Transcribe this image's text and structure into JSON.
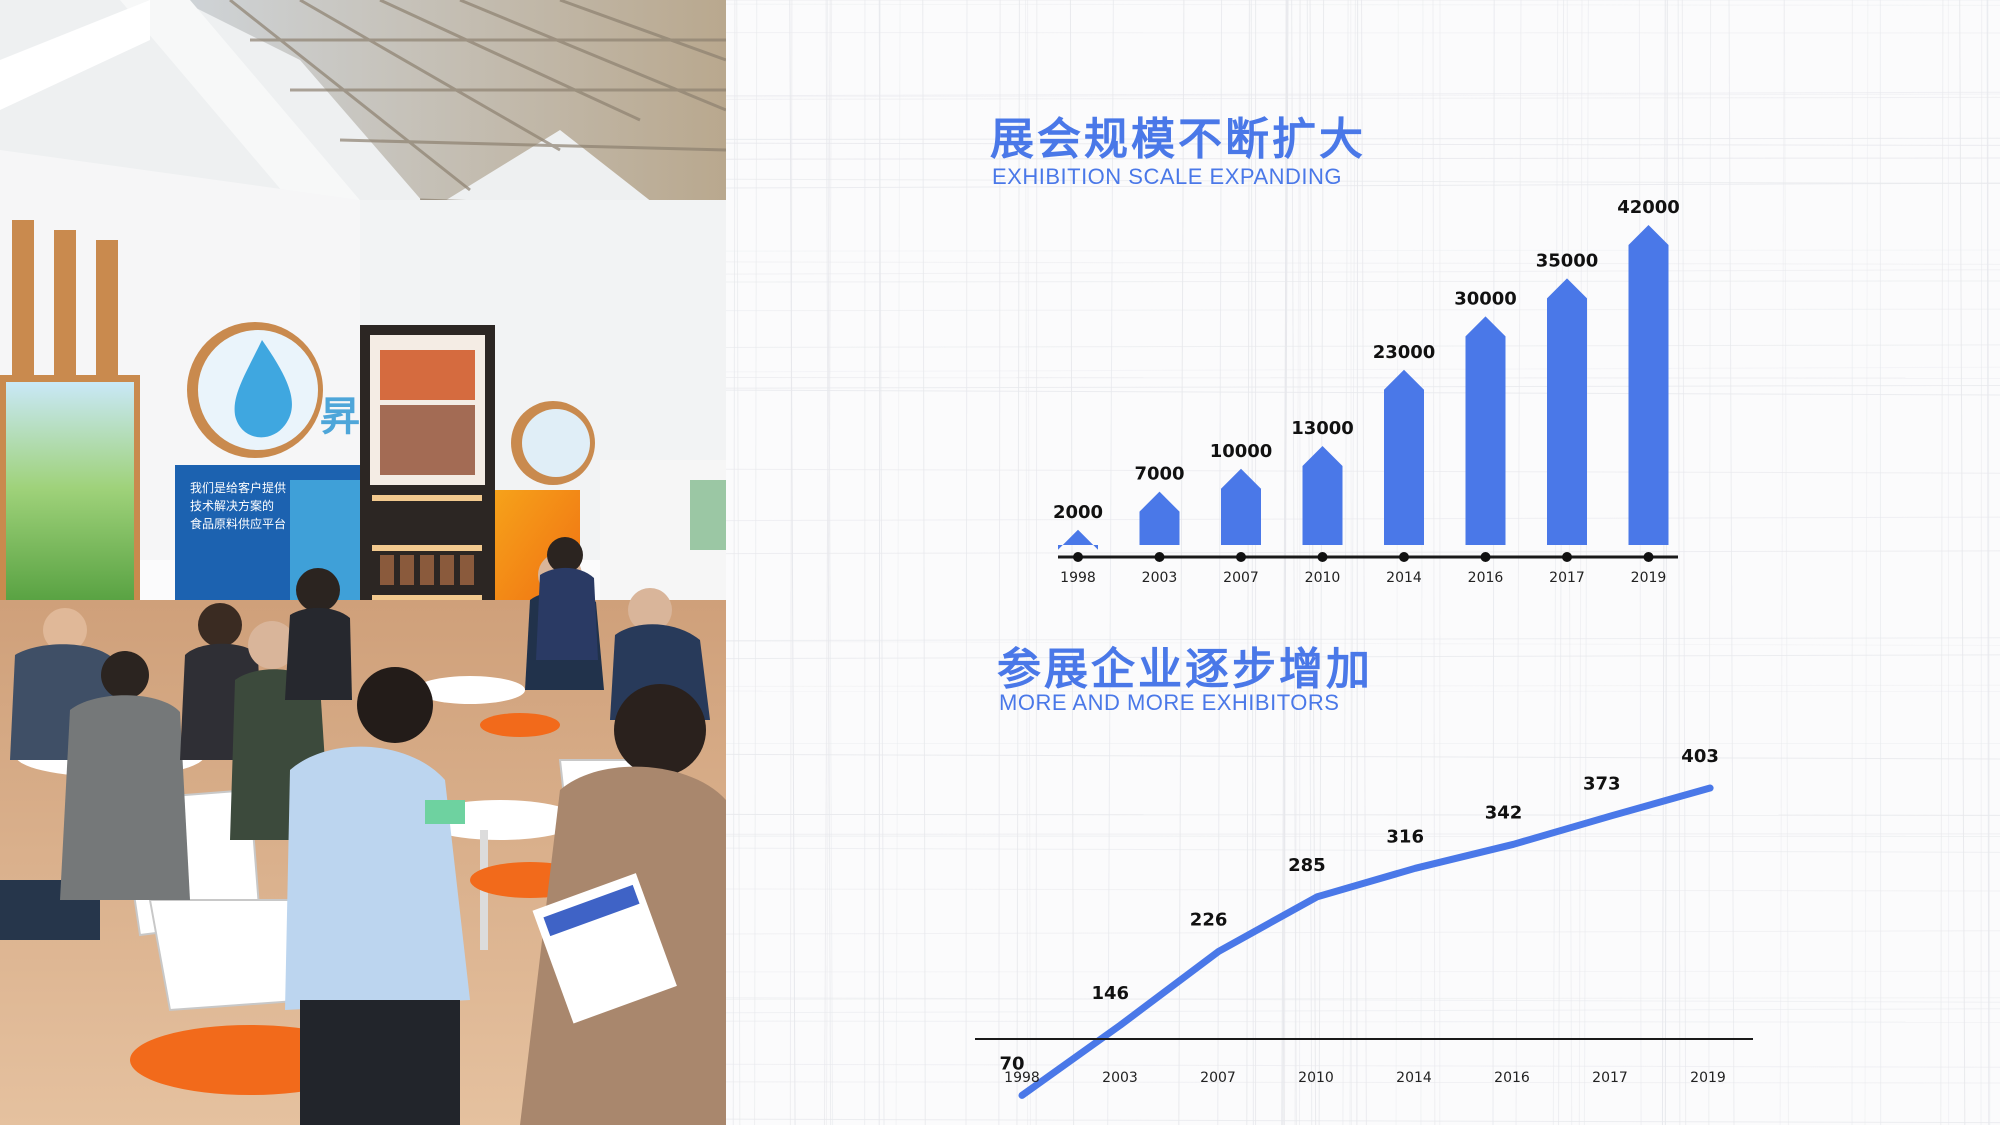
{
  "section1": {
    "title_cn": "展会规模不断扩大",
    "title_en": "EXHIBITION SCALE EXPANDING"
  },
  "section2": {
    "title_cn": "参展企业逐步增加",
    "title_en": "MORE AND MORE EXHIBITORS"
  },
  "photo": {
    "booth_text_1": "我们是给客户提供",
    "booth_text_2": "技术解决方案的",
    "booth_text_3": "食品原料供应平台"
  },
  "colors": {
    "accent": "#4a78e8",
    "axis": "#1a1a1a"
  },
  "chart_data": [
    {
      "type": "bar",
      "title": "展会规模不断扩大",
      "subtitle": "EXHIBITION SCALE EXPANDING",
      "categories": [
        "1998",
        "2003",
        "2007",
        "2010",
        "2014",
        "2016",
        "2017",
        "2019"
      ],
      "values": [
        2000,
        7000,
        10000,
        13000,
        23000,
        30000,
        35000,
        42000
      ],
      "ylim": [
        0,
        42000
      ],
      "grid": false,
      "bar_shape": "arrow",
      "color": "#4a78e8"
    },
    {
      "type": "line",
      "title": "参展企业逐步增加",
      "subtitle": "MORE AND MORE EXHIBITORS",
      "categories": [
        "1998",
        "2003",
        "2007",
        "2010",
        "2014",
        "2016",
        "2017",
        "2019"
      ],
      "values": [
        70,
        146,
        226,
        285,
        316,
        342,
        373,
        403
      ],
      "ylim": [
        0,
        403
      ],
      "grid": false,
      "color": "#4a78e8"
    }
  ]
}
